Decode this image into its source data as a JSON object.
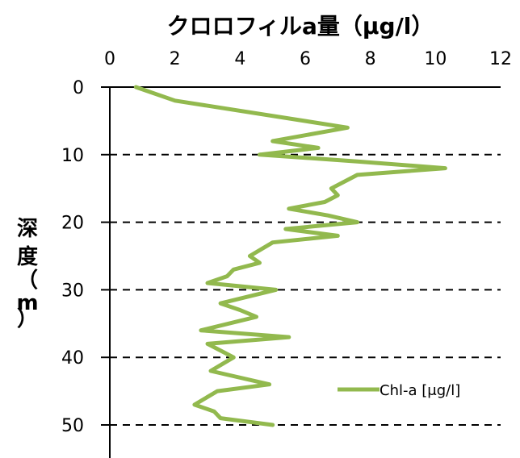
{
  "chart_data": {
    "type": "line",
    "title": "クロロフィルa量（μg/l）",
    "ylabel_chars": [
      "深",
      "度",
      "（",
      "m",
      "）"
    ],
    "xlim": [
      0,
      12
    ],
    "x_ticks": [
      "0",
      "2",
      "4",
      "6",
      "8",
      "10",
      "12"
    ],
    "ylim": [
      0,
      50
    ],
    "y_reversed": true,
    "y_ticks": [
      "0",
      "10",
      "20",
      "30",
      "40",
      "50"
    ],
    "grid": "dashed horizontal at 10, 20, 30, 40, 50",
    "legend_position": "bottom-right",
    "series": [
      {
        "name": "Chl-a [μg/l]",
        "color": "#92b94e",
        "points": [
          {
            "x": 0.8,
            "depth": 0
          },
          {
            "x": 2.0,
            "depth": 2
          },
          {
            "x": 7.3,
            "depth": 6
          },
          {
            "x": 5.0,
            "depth": 8
          },
          {
            "x": 6.4,
            "depth": 9
          },
          {
            "x": 4.6,
            "depth": 10
          },
          {
            "x": 7.6,
            "depth": 11
          },
          {
            "x": 10.3,
            "depth": 12
          },
          {
            "x": 7.6,
            "depth": 13
          },
          {
            "x": 6.8,
            "depth": 15
          },
          {
            "x": 7.0,
            "depth": 16
          },
          {
            "x": 6.6,
            "depth": 17
          },
          {
            "x": 5.5,
            "depth": 18
          },
          {
            "x": 6.7,
            "depth": 19
          },
          {
            "x": 7.6,
            "depth": 20
          },
          {
            "x": 5.4,
            "depth": 21
          },
          {
            "x": 7.0,
            "depth": 22
          },
          {
            "x": 5.0,
            "depth": 23
          },
          {
            "x": 4.3,
            "depth": 25
          },
          {
            "x": 4.6,
            "depth": 26
          },
          {
            "x": 3.8,
            "depth": 27
          },
          {
            "x": 3.6,
            "depth": 28
          },
          {
            "x": 3.0,
            "depth": 29
          },
          {
            "x": 5.1,
            "depth": 30
          },
          {
            "x": 3.4,
            "depth": 32
          },
          {
            "x": 4.0,
            "depth": 33
          },
          {
            "x": 4.5,
            "depth": 34
          },
          {
            "x": 2.8,
            "depth": 36
          },
          {
            "x": 5.5,
            "depth": 37
          },
          {
            "x": 3.0,
            "depth": 38
          },
          {
            "x": 3.8,
            "depth": 40
          },
          {
            "x": 3.1,
            "depth": 42
          },
          {
            "x": 4.9,
            "depth": 44
          },
          {
            "x": 3.3,
            "depth": 45
          },
          {
            "x": 2.6,
            "depth": 47
          },
          {
            "x": 3.2,
            "depth": 48
          },
          {
            "x": 3.4,
            "depth": 49
          },
          {
            "x": 5.0,
            "depth": 50
          }
        ]
      }
    ]
  }
}
